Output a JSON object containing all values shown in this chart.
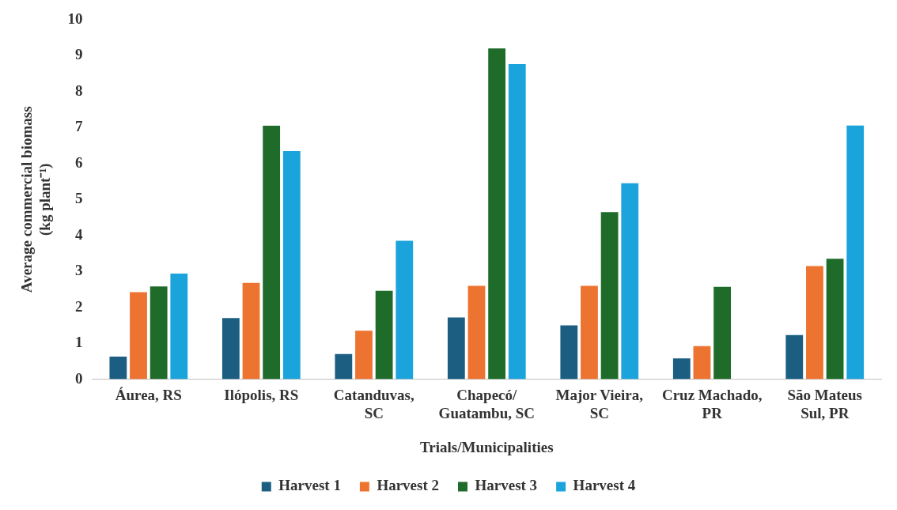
{
  "chart_data": {
    "type": "bar",
    "xlabel": "Trials/Municipalities",
    "ylabel": "Average commercial biomass (kg plant⁻¹)",
    "categories": [
      "Áurea, RS",
      "Ilópolis, RS",
      "Catanduvas, SC",
      "Chapecó/Guatambu, SC",
      "Major Vieira, SC",
      "Cruz Machado, PR",
      "São Mateus Sul, PR"
    ],
    "series": [
      {
        "name": "Harvest 1",
        "color": "#1b5e82",
        "values": [
          0.63,
          1.7,
          0.7,
          1.72,
          1.5,
          0.58,
          1.23
        ]
      },
      {
        "name": "Harvest 2",
        "color": "#ed7331",
        "values": [
          2.42,
          2.68,
          1.35,
          2.6,
          2.6,
          0.92,
          3.15
        ]
      },
      {
        "name": "Harvest 3",
        "color": "#1e6b2a",
        "values": [
          2.58,
          7.05,
          2.46,
          9.2,
          4.65,
          2.57,
          3.35
        ]
      },
      {
        "name": "Harvest 4",
        "color": "#1ba3dc",
        "values": [
          2.94,
          6.35,
          3.85,
          8.77,
          5.45,
          null,
          7.06
        ]
      }
    ],
    "ylim": [
      0,
      10
    ],
    "yticks": [
      0,
      1,
      2,
      3,
      4,
      5,
      6,
      7,
      8,
      9,
      10
    ],
    "grid": false,
    "legend": "bottom"
  }
}
